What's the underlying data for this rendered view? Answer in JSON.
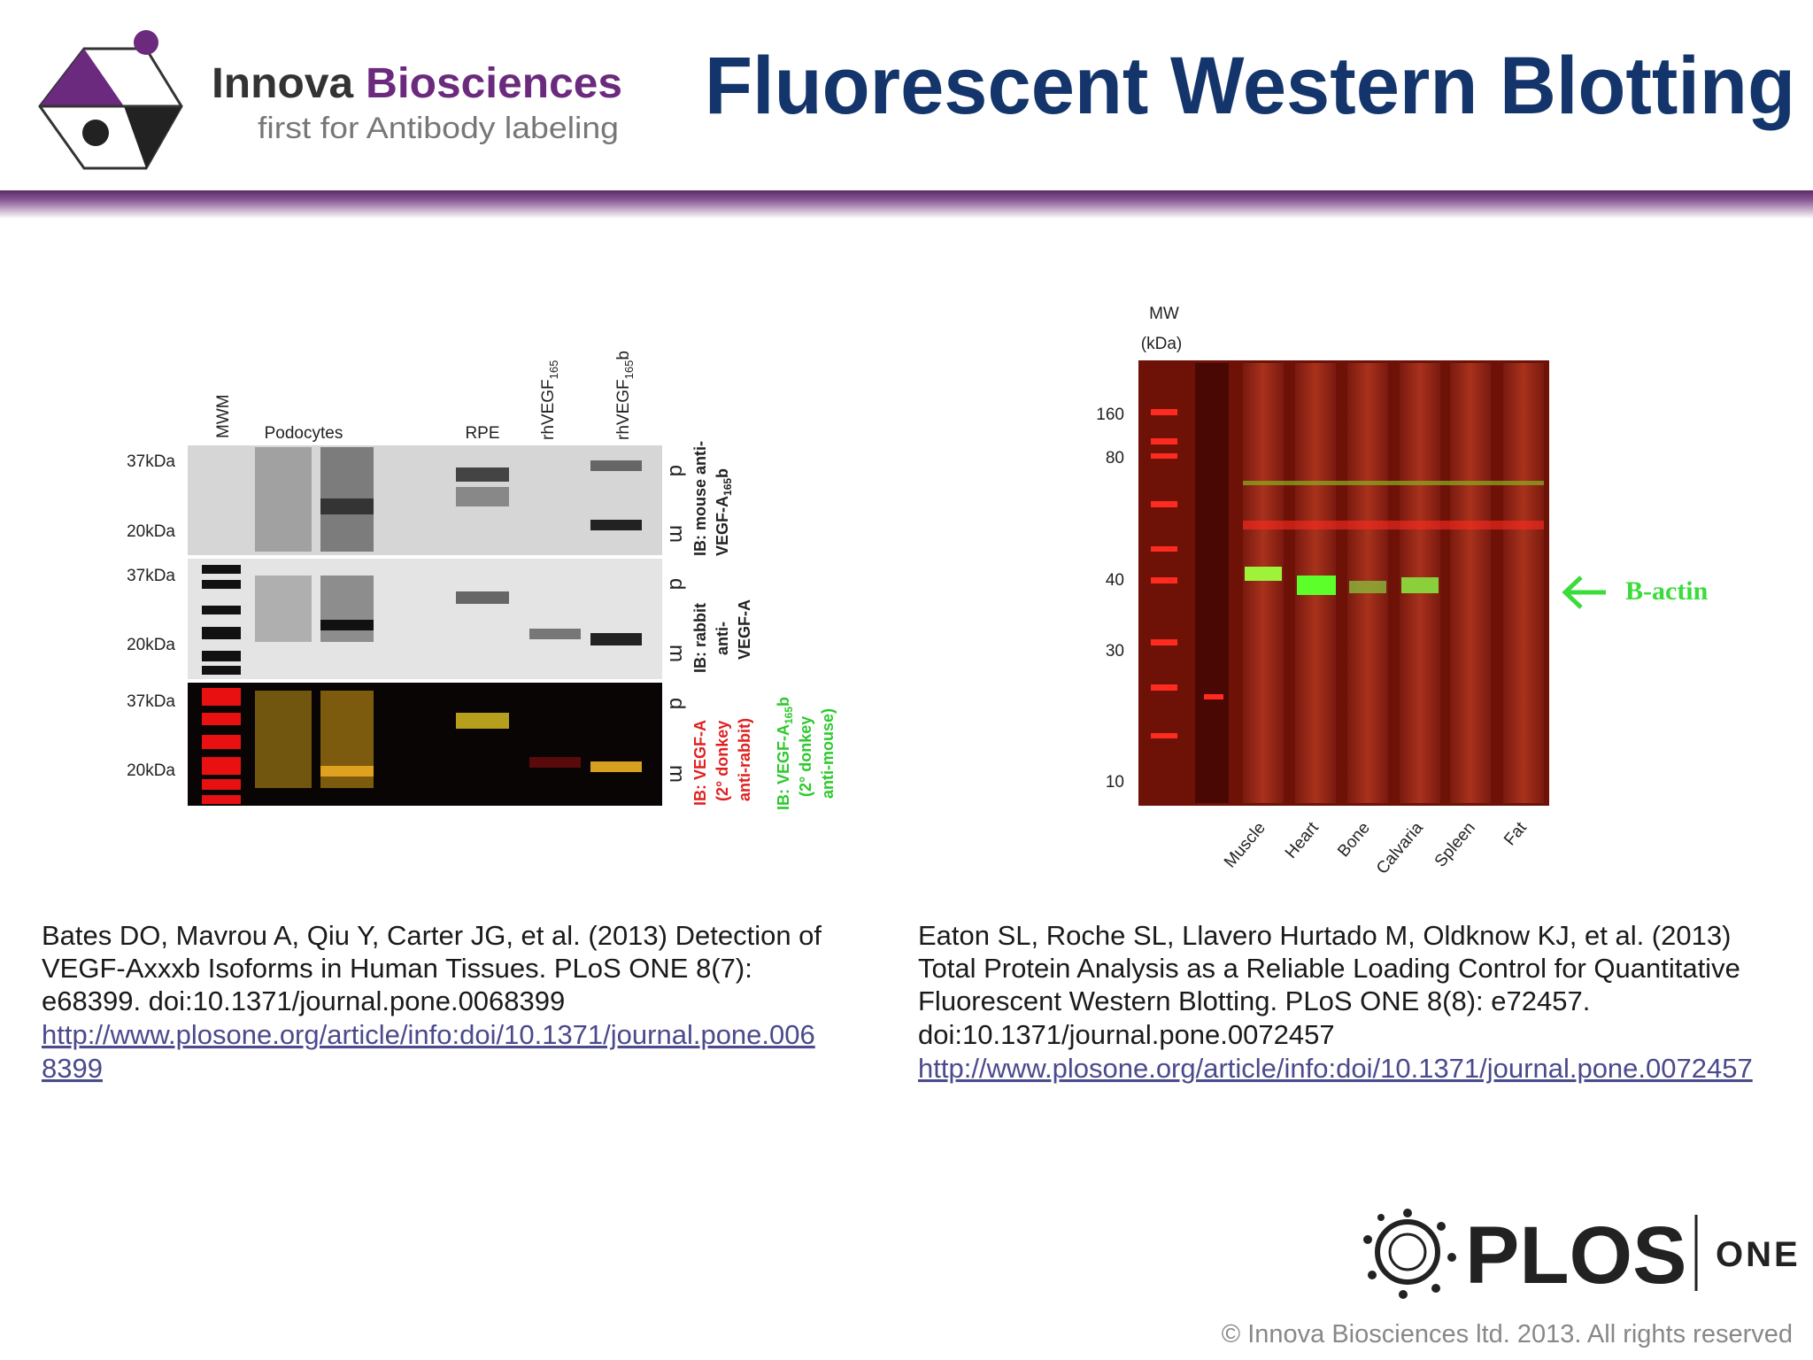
{
  "header": {
    "brand_1": "Innova",
    "brand_2": "Biosciences",
    "tagline": "first for Antibody labeling",
    "title": "Fluorescent Western Blotting"
  },
  "left_figure": {
    "lanes": [
      "MWM",
      "Podocytes",
      "RPE"
    ],
    "rh_165": {
      "text": "rhVEGF",
      "sub": "165"
    },
    "rh_165b": {
      "text": "rhVEGF",
      "sub": "165",
      "suffix": "b"
    },
    "mw": [
      "37kDa",
      "20kDa",
      "37kDa",
      "20kDa",
      "37kDa",
      "20kDa"
    ],
    "forms": [
      "d",
      "m",
      "d",
      "m",
      "d",
      "m"
    ],
    "ib_1": {
      "line_1": "IB: mouse anti-",
      "line_2": "VEGF-A",
      "sub": "165",
      "suffix": "b"
    },
    "ib_2": [
      "IB: rabbit",
      "anti-",
      "VEGF-A"
    ],
    "ib_3_red": [
      "IB: VEGF-A",
      "(2° donkey",
      "anti-rabbit)"
    ],
    "ib_3_green": {
      "line_1": "IB: VEGF-A",
      "sub": "165",
      "suffix": "b",
      "line_2": "(2° donkey",
      "line_3": "anti-mouse)"
    }
  },
  "right_figure": {
    "mw_title": [
      "MW",
      "(kDa)"
    ],
    "mw": [
      "160",
      "80",
      "40",
      "30",
      "10"
    ],
    "lanes": [
      "Muscle",
      "Heart",
      "Bone",
      "Calvaria",
      "Spleen",
      "Fat"
    ],
    "annotation": "B-actin"
  },
  "citations": {
    "left": [
      "Bates DO, Mavrou A, Qiu Y, Carter JG, et al. (2013) Detection of",
      "VEGF-Axxxb Isoforms in Human Tissues. PLoS ONE 8(7):",
      "e68399. doi:10.1371/journal.pone.0068399"
    ],
    "left_link": [
      "http://www.plosone.org/article/info:doi/10.1371/journal.pone.006",
      "8399"
    ],
    "right": [
      "Eaton SL, Roche SL, Llavero Hurtado M, Oldknow KJ, et al. (2013)",
      "Total Protein Analysis as a Reliable Loading Control for Quantitative",
      "Fluorescent Western Blotting. PLoS ONE 8(8): e72457.",
      "doi:10.1371/journal.pone.0072457"
    ],
    "right_link": "http://www.plosone.org/article/info:doi/10.1371/journal.pone.0072457"
  },
  "footer": {
    "plos": "PLOS",
    "one": "ONE",
    "copyright": "© Innova Biosciences ltd. 2013. All rights reserved"
  }
}
